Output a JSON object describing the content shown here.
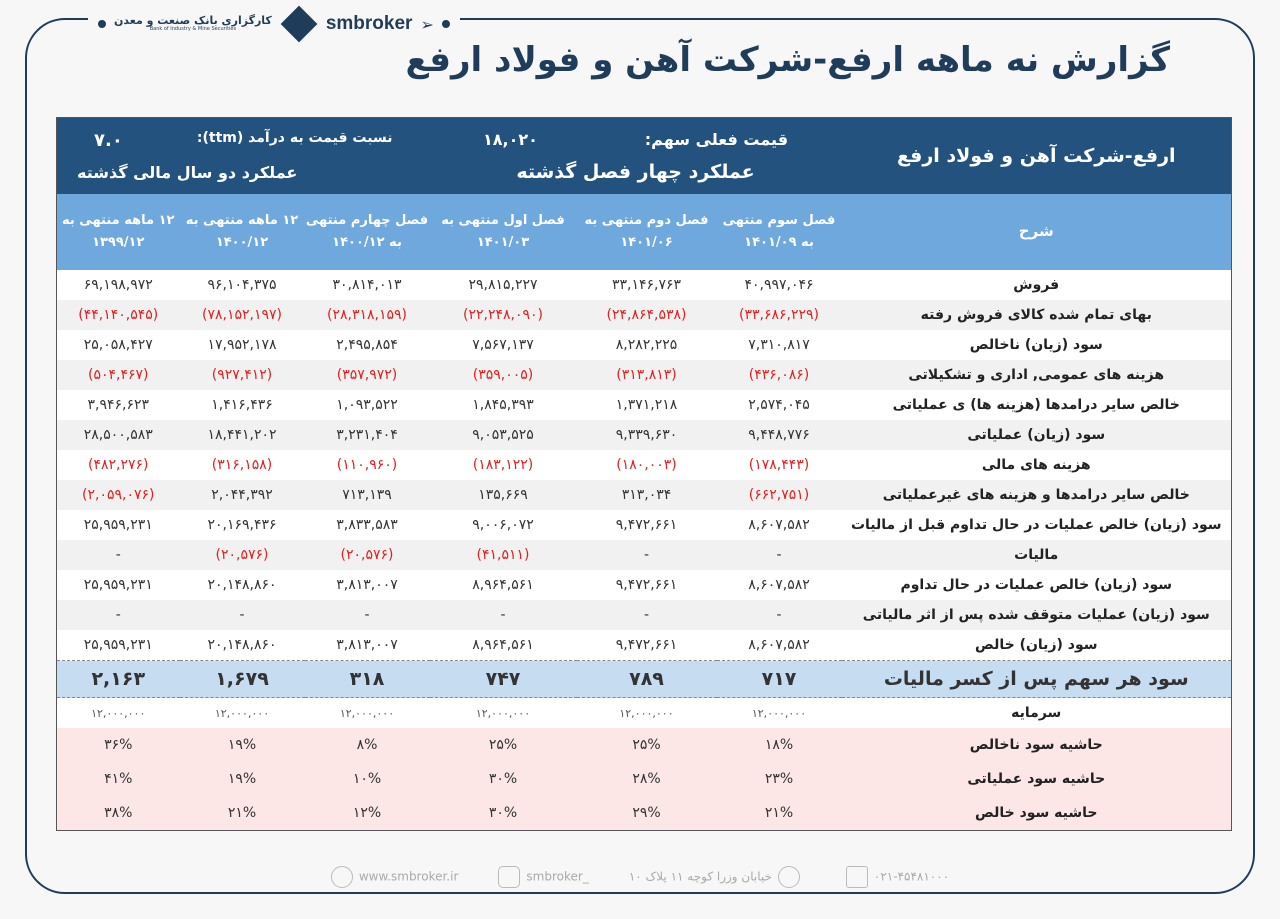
{
  "brand": {
    "name": "smbroker",
    "bank_fa": "کارگزاری بانک صنعت و معدن",
    "bank_en": "Bank of Industry & Mine Securities"
  },
  "title": "گزارش نه ماهه ارفع-شرکت آهن و فولاد ارفع",
  "header": {
    "company": "ارفع-شرکت آهن و فولاد ارفع",
    "price_label": "قیمت فعلی سهم:",
    "price_value": "۱۸,۰۲۰",
    "pe_label": "نسبت  قیمت به درآمد (ttm):",
    "pe_value": "۷.۰",
    "group_quarters": "عملکرد چهار فصل گذشته",
    "group_years": "عملکرد دو سال مالی گذشته"
  },
  "columns": [
    "شرح",
    "فصل سوم منتهی به ۱۴۰۱/۰۹",
    "فصل دوم منتهی به ۱۴۰۱/۰۶",
    "فصل اول منتهی به ۱۴۰۱/۰۳",
    "فصل چهارم منتهی به ۱۴۰۰/۱۲",
    "۱۲ ماهه منتهی به ۱۴۰۰/۱۲",
    "۱۲ ماهه منتهی به ۱۳۹۹/۱۲"
  ],
  "rows": [
    {
      "label": "فروش",
      "values": [
        "۴۰,۹۹۷,۰۴۶",
        "۳۳,۱۴۶,۷۶۳",
        "۲۹,۸۱۵,۲۲۷",
        "۳۰,۸۱۴,۰۱۳",
        "۹۶,۱۰۴,۳۷۵",
        "۶۹,۱۹۸,۹۷۲"
      ]
    },
    {
      "label": "بهای تمام شده کالای فروش رفته",
      "values": [
        "(۳۳,۶۸۶,۲۲۹)",
        "(۲۴,۸۶۴,۵۳۸)",
        "(۲۲,۲۴۸,۰۹۰)",
        "(۲۸,۳۱۸,۱۵۹)",
        "(۷۸,۱۵۲,۱۹۷)",
        "(۴۴,۱۴۰,۵۴۵)"
      ]
    },
    {
      "label": "سود (زیان) ناخالص",
      "values": [
        "۷,۳۱۰,۸۱۷",
        "۸,۲۸۲,۲۲۵",
        "۷,۵۶۷,۱۳۷",
        "۲,۴۹۵,۸۵۴",
        "۱۷,۹۵۲,۱۷۸",
        "۲۵,۰۵۸,۴۲۷"
      ]
    },
    {
      "label": "هزینه های عمومی, اداری و تشکیلاتی",
      "values": [
        "(۴۳۶,۰۸۶)",
        "(۳۱۳,۸۱۳)",
        "(۳۵۹,۰۰۵)",
        "(۳۵۷,۹۷۲)",
        "(۹۲۷,۴۱۲)",
        "(۵۰۴,۴۶۷)"
      ]
    },
    {
      "label": "خالص سایر درامدها (هزینه ها) ی عملیاتی",
      "values": [
        "۲,۵۷۴,۰۴۵",
        "۱,۳۷۱,۲۱۸",
        "۱,۸۴۵,۳۹۳",
        "۱,۰۹۳,۵۲۲",
        "۱,۴۱۶,۴۳۶",
        "۳,۹۴۶,۶۲۳"
      ]
    },
    {
      "label": "سود (زیان) عملیاتی",
      "values": [
        "۹,۴۴۸,۷۷۶",
        "۹,۳۳۹,۶۳۰",
        "۹,۰۵۳,۵۲۵",
        "۳,۲۳۱,۴۰۴",
        "۱۸,۴۴۱,۲۰۲",
        "۲۸,۵۰۰,۵۸۳"
      ]
    },
    {
      "label": "هزینه های مالی",
      "values": [
        "(۱۷۸,۴۴۳)",
        "(۱۸۰,۰۰۳)",
        "(۱۸۳,۱۲۲)",
        "(۱۱۰,۹۶۰)",
        "(۳۱۶,۱۵۸)",
        "(۴۸۲,۲۷۶)"
      ]
    },
    {
      "label": "خالص سایر درامدها و هزینه های غیرعملیاتی",
      "values": [
        "(۶۶۲,۷۵۱)",
        "۳۱۳,۰۳۴",
        "۱۳۵,۶۶۹",
        "۷۱۳,۱۳۹",
        "۲,۰۴۴,۳۹۲",
        "(۲,۰۵۹,۰۷۶)"
      ]
    },
    {
      "label": "سود (زیان) خالص عملیات در حال تداوم قبل از مالیات",
      "values": [
        "۸,۶۰۷,۵۸۲",
        "۹,۴۷۲,۶۶۱",
        "۹,۰۰۶,۰۷۲",
        "۳,۸۳۳,۵۸۳",
        "۲۰,۱۶۹,۴۳۶",
        "۲۵,۹۵۹,۲۳۱"
      ]
    },
    {
      "label": "مالیات",
      "values": [
        "-",
        "-",
        "(۴۱,۵۱۱)",
        "(۲۰,۵۷۶)",
        "(۲۰,۵۷۶)",
        "-"
      ]
    },
    {
      "label": "سود (زیان) خالص عملیات در حال تداوم",
      "values": [
        "۸,۶۰۷,۵۸۲",
        "۹,۴۷۲,۶۶۱",
        "۸,۹۶۴,۵۶۱",
        "۳,۸۱۳,۰۰۷",
        "۲۰,۱۴۸,۸۶۰",
        "۲۵,۹۵۹,۲۳۱"
      ]
    },
    {
      "label": "سود (زیان) عملیات متوقف شده پس از اثر مالیاتی",
      "values": [
        "-",
        "-",
        "-",
        "-",
        "-",
        "-"
      ]
    },
    {
      "label": "سود (زیان) خالص",
      "values": [
        "۸,۶۰۷,۵۸۲",
        "۹,۴۷۲,۶۶۱",
        "۸,۹۶۴,۵۶۱",
        "۳,۸۱۳,۰۰۷",
        "۲۰,۱۴۸,۸۶۰",
        "۲۵,۹۵۹,۲۳۱"
      ]
    }
  ],
  "eps": {
    "label": "سود هر سهم پس از کسر مالیات",
    "values": [
      "۷۱۷",
      "۷۸۹",
      "۷۴۷",
      "۳۱۸",
      "۱,۶۷۹",
      "۲,۱۶۳"
    ]
  },
  "capital": {
    "label": "سرمایه",
    "values": [
      "۱۲,۰۰۰,۰۰۰",
      "۱۲,۰۰۰,۰۰۰",
      "۱۲,۰۰۰,۰۰۰",
      "۱۲,۰۰۰,۰۰۰",
      "۱۲,۰۰۰,۰۰۰",
      "۱۲,۰۰۰,۰۰۰"
    ]
  },
  "margins": [
    {
      "label": "حاشیه سود ناخالص",
      "values": [
        "۱۸%",
        "۲۵%",
        "۲۵%",
        "۸%",
        "۱۹%",
        "۳۶%"
      ]
    },
    {
      "label": "حاشیه سود عملیاتی",
      "values": [
        "۲۳%",
        "۲۸%",
        "۳۰%",
        "۱۰%",
        "۱۹%",
        "۴۱%"
      ]
    },
    {
      "label": "حاشیه سود خالص",
      "values": [
        "۲۱%",
        "۲۹%",
        "۳۰%",
        "۱۲%",
        "۲۱%",
        "۳۸%"
      ]
    }
  ],
  "footer": {
    "website": "www.smbroker.ir",
    "instagram": "smbroker_",
    "address": "خیابان وزرا کوچه ۱۱ پلاک ۱۰",
    "phone": "۰۲۱-۴۵۴۸۱۰۰۰"
  },
  "colors": {
    "dark_blue": "#23527f",
    "light_blue": "#6fa8dc",
    "eps_bg": "#c6dcf0",
    "margin_bg": "#fce6e6",
    "negative": "#e02020"
  }
}
